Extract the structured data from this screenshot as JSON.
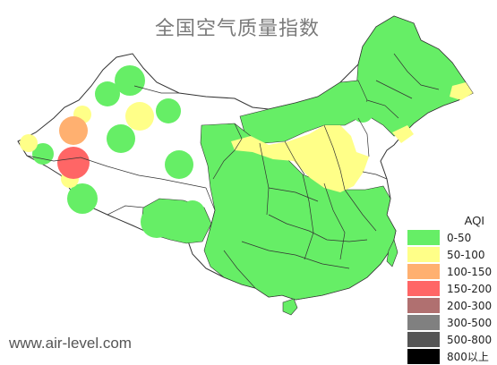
{
  "title": "全国空气质量指数",
  "site": "www.air-level.com",
  "legend": {
    "title": "AQI",
    "items": [
      {
        "label": "0-50",
        "color": "#66ee66"
      },
      {
        "label": "50-100",
        "color": "#ffff88"
      },
      {
        "label": "100-150",
        "color": "#ffb070"
      },
      {
        "label": "150-200",
        "color": "#ff6666"
      },
      {
        "label": "200-300",
        "color": "#b07070"
      },
      {
        "label": "300-500",
        "color": "#808080"
      },
      {
        "label": "500-800",
        "color": "#555555"
      },
      {
        "label": "800以上",
        "color": "#000000"
      }
    ]
  },
  "colors": {
    "good": "#66ee66",
    "moderate": "#ffff88",
    "sensitive": "#ffb070",
    "unhealthy": "#ff6666",
    "border": "#333333"
  }
}
